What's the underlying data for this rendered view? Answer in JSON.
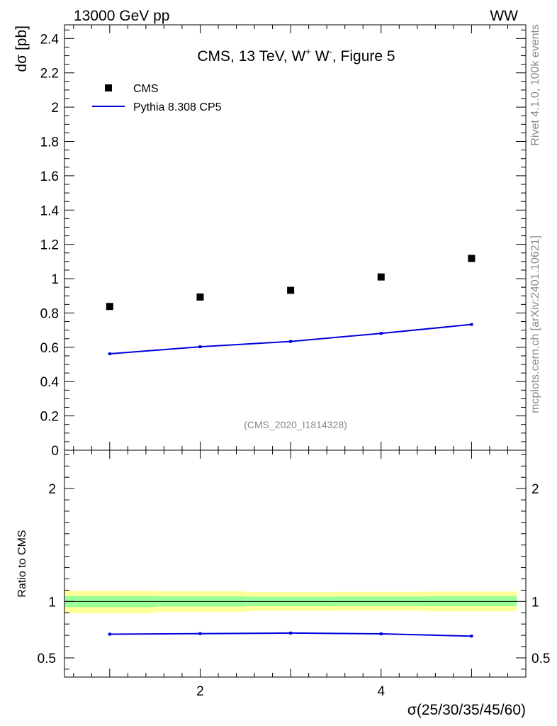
{
  "header": {
    "beam_label": "13000 GeV pp",
    "process_label": "WW",
    "side_top": "Rivet 4.1.0,  100k events",
    "side_bottom": "mcplots.cern.ch [arXiv:2401.10621]"
  },
  "chart_data": [
    {
      "type": "scatter",
      "panel": "main",
      "title_parts": [
        "CMS, 13 TeV, W",
        "+",
        " W",
        "-",
        ", Figure 5"
      ],
      "ylabel": "dσ [pb]",
      "xlabel": "",
      "watermark": "(CMS_2020_I1814328)",
      "xlim": [
        0.5,
        5.6
      ],
      "ylim": [
        0,
        2.48
      ],
      "yticks": [
        0,
        0.2,
        0.4,
        0.6,
        0.8,
        1,
        1.2,
        1.4,
        1.6,
        1.8,
        2,
        2.2,
        2.4
      ],
      "ytick_labels": [
        "0",
        "0.2",
        "0.4",
        "0.6",
        "0.8",
        "1",
        "1.2",
        "1.4",
        "1.6",
        "1.8",
        "2",
        "2.2",
        "2.4"
      ],
      "x": [
        1,
        2,
        3,
        4,
        5
      ],
      "legend_position": "top-left",
      "series": [
        {
          "name": "CMS",
          "kind": "marker",
          "color": "#000000",
          "values": [
            0.838,
            0.893,
            0.932,
            1.01,
            1.118
          ]
        },
        {
          "name": "Pythia 8.308 CP5",
          "kind": "line",
          "color": "#0000dd",
          "values": [
            0.562,
            0.603,
            0.634,
            0.681,
            0.733
          ]
        }
      ]
    },
    {
      "type": "line",
      "panel": "ratio",
      "ylabel": "Ratio to CMS",
      "xlabel": "σ(25/30/35/45/60)",
      "xlim": [
        0.5,
        5.6
      ],
      "ylim": [
        0.33,
        2.34
      ],
      "xticks": [
        2,
        4
      ],
      "xtick_labels": [
        "2",
        "4"
      ],
      "yticks": [
        0.5,
        1,
        2
      ],
      "ytick_labels": [
        "0.5",
        "1",
        "2"
      ],
      "reference": 1,
      "bin_edges": [
        0.5,
        1.5,
        2.5,
        3.5,
        4.5,
        5.5
      ],
      "band_outer": {
        "color": "#ffff99",
        "low": [
          0.895,
          0.907,
          0.915,
          0.918,
          0.912
        ],
        "high": [
          1.095,
          1.09,
          1.083,
          1.085,
          1.088
        ]
      },
      "band_inner": {
        "color": "#99ff99",
        "low": [
          0.95,
          0.955,
          0.958,
          0.96,
          0.958
        ],
        "high": [
          1.048,
          1.045,
          1.042,
          1.044,
          1.046
        ]
      },
      "x": [
        1,
        2,
        3,
        4,
        5
      ],
      "series": [
        {
          "name": "Pythia 8.308 CP5",
          "color": "#0000dd",
          "values": [
            0.71,
            0.715,
            0.72,
            0.713,
            0.693
          ]
        }
      ]
    }
  ]
}
